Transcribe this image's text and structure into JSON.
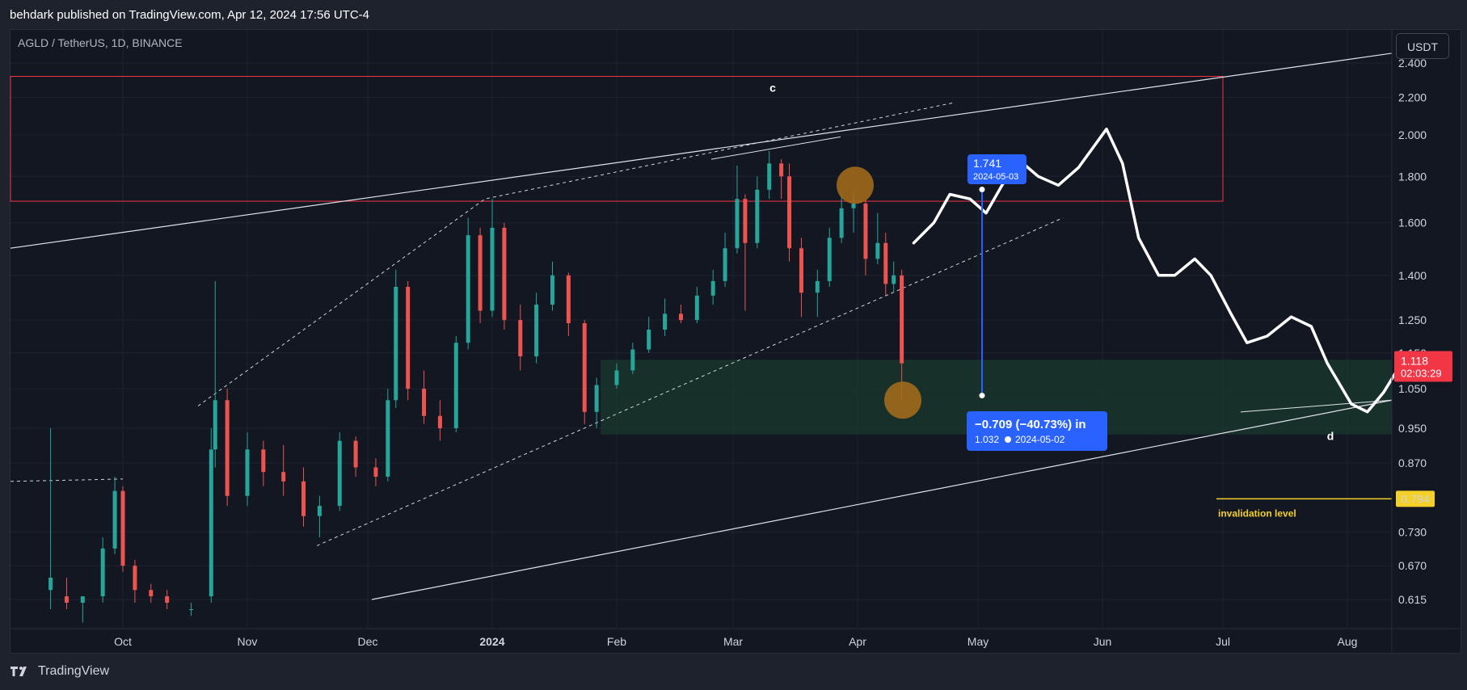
{
  "header": {
    "published": "behdark published on TradingView.com, Apr 12, 2024 17:56 UTC-4"
  },
  "chart_header": {
    "symbol": "AGLD / TetherUS, 1D, BINANCE",
    "currency_button": "USDT"
  },
  "footer": {
    "brand": "TradingView"
  },
  "chart_data": {
    "type": "candlestick",
    "symbol": "AGLD / TetherUS",
    "interval": "1D",
    "exchange": "BINANCE",
    "price_scale": "log",
    "y_tick_labels": [
      "2.400",
      "2.200",
      "2.000",
      "1.800",
      "1.600",
      "1.400",
      "1.250",
      "1.150",
      "1.050",
      "0.950",
      "0.870",
      "0.794",
      "0.730",
      "0.670",
      "0.615"
    ],
    "x_tick_labels": [
      "Oct",
      "Nov",
      "Dec",
      "2024",
      "Feb",
      "Mar",
      "Apr",
      "May",
      "Jun",
      "Jul",
      "Aug"
    ],
    "last_price_label": "1.118",
    "countdown_label": "02:03:29",
    "colors": {
      "up": "#26a69a",
      "down": "#ef5350",
      "background": "#131722",
      "grid": "#1f2330",
      "zone": "#1b3a2e",
      "red_box": "#f23645",
      "measure": "#2962ff",
      "orange_circle": "#a86d1a",
      "invalidation": "#f5d027"
    },
    "series": [
      {
        "date": "2023-09-13",
        "o": 0.63,
        "h": 0.95,
        "l": 0.6,
        "c": 0.65
      },
      {
        "date": "2023-09-17",
        "o": 0.62,
        "h": 0.65,
        "l": 0.6,
        "c": 0.61
      },
      {
        "date": "2023-09-21",
        "o": 0.61,
        "h": 0.62,
        "l": 0.58,
        "c": 0.62
      },
      {
        "date": "2023-09-26",
        "o": 0.62,
        "h": 0.72,
        "l": 0.61,
        "c": 0.7
      },
      {
        "date": "2023-09-29",
        "o": 0.7,
        "h": 0.84,
        "l": 0.69,
        "c": 0.81
      },
      {
        "date": "2023-10-01",
        "o": 0.81,
        "h": 0.82,
        "l": 0.66,
        "c": 0.67
      },
      {
        "date": "2023-10-04",
        "o": 0.67,
        "h": 0.68,
        "l": 0.61,
        "c": 0.63
      },
      {
        "date": "2023-10-08",
        "o": 0.63,
        "h": 0.64,
        "l": 0.61,
        "c": 0.62
      },
      {
        "date": "2023-10-12",
        "o": 0.62,
        "h": 0.63,
        "l": 0.6,
        "c": 0.61
      },
      {
        "date": "2023-10-18",
        "o": 0.6,
        "h": 0.61,
        "l": 0.59,
        "c": 0.6
      },
      {
        "date": "2023-10-23",
        "o": 0.62,
        "h": 0.95,
        "l": 0.61,
        "c": 0.9
      },
      {
        "date": "2023-10-24",
        "o": 0.9,
        "h": 1.38,
        "l": 0.86,
        "c": 1.02
      },
      {
        "date": "2023-10-27",
        "o": 1.02,
        "h": 1.05,
        "l": 0.78,
        "c": 0.8
      },
      {
        "date": "2023-11-01",
        "o": 0.8,
        "h": 0.94,
        "l": 0.78,
        "c": 0.9
      },
      {
        "date": "2023-11-05",
        "o": 0.9,
        "h": 0.92,
        "l": 0.82,
        "c": 0.85
      },
      {
        "date": "2023-11-10",
        "o": 0.85,
        "h": 0.91,
        "l": 0.8,
        "c": 0.83
      },
      {
        "date": "2023-11-15",
        "o": 0.83,
        "h": 0.86,
        "l": 0.74,
        "c": 0.76
      },
      {
        "date": "2023-11-19",
        "o": 0.76,
        "h": 0.8,
        "l": 0.72,
        "c": 0.78
      },
      {
        "date": "2023-11-24",
        "o": 0.78,
        "h": 0.94,
        "l": 0.77,
        "c": 0.92
      },
      {
        "date": "2023-11-28",
        "o": 0.92,
        "h": 0.93,
        "l": 0.84,
        "c": 0.86
      },
      {
        "date": "2023-12-03",
        "o": 0.86,
        "h": 0.88,
        "l": 0.82,
        "c": 0.84
      },
      {
        "date": "2023-12-06",
        "o": 0.84,
        "h": 1.05,
        "l": 0.83,
        "c": 1.02
      },
      {
        "date": "2023-12-08",
        "o": 1.02,
        "h": 1.42,
        "l": 1.0,
        "c": 1.36
      },
      {
        "date": "2023-12-11",
        "o": 1.36,
        "h": 1.38,
        "l": 1.02,
        "c": 1.05
      },
      {
        "date": "2023-12-15",
        "o": 1.05,
        "h": 1.1,
        "l": 0.96,
        "c": 0.98
      },
      {
        "date": "2023-12-19",
        "o": 0.98,
        "h": 1.02,
        "l": 0.92,
        "c": 0.95
      },
      {
        "date": "2023-12-23",
        "o": 0.95,
        "h": 1.2,
        "l": 0.94,
        "c": 1.18
      },
      {
        "date": "2023-12-26",
        "o": 1.18,
        "h": 1.62,
        "l": 1.16,
        "c": 1.55
      },
      {
        "date": "2023-12-29",
        "o": 1.55,
        "h": 1.58,
        "l": 1.24,
        "c": 1.28
      },
      {
        "date": "2024-01-01",
        "o": 1.28,
        "h": 1.7,
        "l": 1.26,
        "c": 1.58
      },
      {
        "date": "2024-01-04",
        "o": 1.58,
        "h": 1.6,
        "l": 1.22,
        "c": 1.25
      },
      {
        "date": "2024-01-08",
        "o": 1.25,
        "h": 1.3,
        "l": 1.1,
        "c": 1.14
      },
      {
        "date": "2024-01-12",
        "o": 1.14,
        "h": 1.34,
        "l": 1.12,
        "c": 1.3
      },
      {
        "date": "2024-01-16",
        "o": 1.3,
        "h": 1.45,
        "l": 1.28,
        "c": 1.4
      },
      {
        "date": "2024-01-20",
        "o": 1.4,
        "h": 1.41,
        "l": 1.2,
        "c": 1.24
      },
      {
        "date": "2024-01-24",
        "o": 1.24,
        "h": 1.25,
        "l": 0.96,
        "c": 0.99
      },
      {
        "date": "2024-01-27",
        "o": 0.99,
        "h": 1.08,
        "l": 0.95,
        "c": 1.06
      },
      {
        "date": "2024-02-01",
        "o": 1.06,
        "h": 1.12,
        "l": 1.05,
        "c": 1.1
      },
      {
        "date": "2024-02-05",
        "o": 1.1,
        "h": 1.18,
        "l": 1.09,
        "c": 1.16
      },
      {
        "date": "2024-02-09",
        "o": 1.16,
        "h": 1.26,
        "l": 1.15,
        "c": 1.22
      },
      {
        "date": "2024-02-13",
        "o": 1.22,
        "h": 1.32,
        "l": 1.2,
        "c": 1.27
      },
      {
        "date": "2024-02-17",
        "o": 1.27,
        "h": 1.3,
        "l": 1.24,
        "c": 1.25
      },
      {
        "date": "2024-02-21",
        "o": 1.25,
        "h": 1.36,
        "l": 1.24,
        "c": 1.33
      },
      {
        "date": "2024-02-25",
        "o": 1.33,
        "h": 1.42,
        "l": 1.3,
        "c": 1.38
      },
      {
        "date": "2024-02-28",
        "o": 1.38,
        "h": 1.56,
        "l": 1.36,
        "c": 1.5
      },
      {
        "date": "2024-03-02",
        "o": 1.5,
        "h": 1.85,
        "l": 1.48,
        "c": 1.7
      },
      {
        "date": "2024-03-04",
        "o": 1.7,
        "h": 1.72,
        "l": 1.28,
        "c": 1.52
      },
      {
        "date": "2024-03-07",
        "o": 1.52,
        "h": 1.8,
        "l": 1.5,
        "c": 1.74
      },
      {
        "date": "2024-03-10",
        "o": 1.74,
        "h": 1.92,
        "l": 1.7,
        "c": 1.86
      },
      {
        "date": "2024-03-13",
        "o": 1.86,
        "h": 1.88,
        "l": 1.7,
        "c": 1.8
      },
      {
        "date": "2024-03-15",
        "o": 1.8,
        "h": 1.86,
        "l": 1.45,
        "c": 1.5
      },
      {
        "date": "2024-03-18",
        "o": 1.5,
        "h": 1.54,
        "l": 1.26,
        "c": 1.34
      },
      {
        "date": "2024-03-22",
        "o": 1.34,
        "h": 1.42,
        "l": 1.26,
        "c": 1.38
      },
      {
        "date": "2024-03-25",
        "o": 1.38,
        "h": 1.58,
        "l": 1.36,
        "c": 1.54
      },
      {
        "date": "2024-03-28",
        "o": 1.54,
        "h": 1.72,
        "l": 1.52,
        "c": 1.66
      },
      {
        "date": "2024-03-31",
        "o": 1.66,
        "h": 1.73,
        "l": 1.56,
        "c": 1.68
      },
      {
        "date": "2024-04-03",
        "o": 1.68,
        "h": 1.7,
        "l": 1.4,
        "c": 1.46
      },
      {
        "date": "2024-04-06",
        "o": 1.46,
        "h": 1.64,
        "l": 1.44,
        "c": 1.52
      },
      {
        "date": "2024-04-08",
        "o": 1.52,
        "h": 1.56,
        "l": 1.33,
        "c": 1.37
      },
      {
        "date": "2024-04-10",
        "o": 1.37,
        "h": 1.45,
        "l": 1.34,
        "c": 1.4
      },
      {
        "date": "2024-04-12",
        "o": 1.4,
        "h": 1.42,
        "l": 1.02,
        "c": 1.12
      }
    ],
    "annotations": {
      "label_c": "c",
      "label_d": "d",
      "measure_top_price": "1.741",
      "measure_top_date": "2024-05-03",
      "measure_change": "−0.709 (−40.73%) in",
      "measure_bottom_price": "1.032",
      "measure_bottom_date": "2024-05-02",
      "invalidation_label": "invalidation level",
      "invalidation_price": "0.794"
    }
  }
}
